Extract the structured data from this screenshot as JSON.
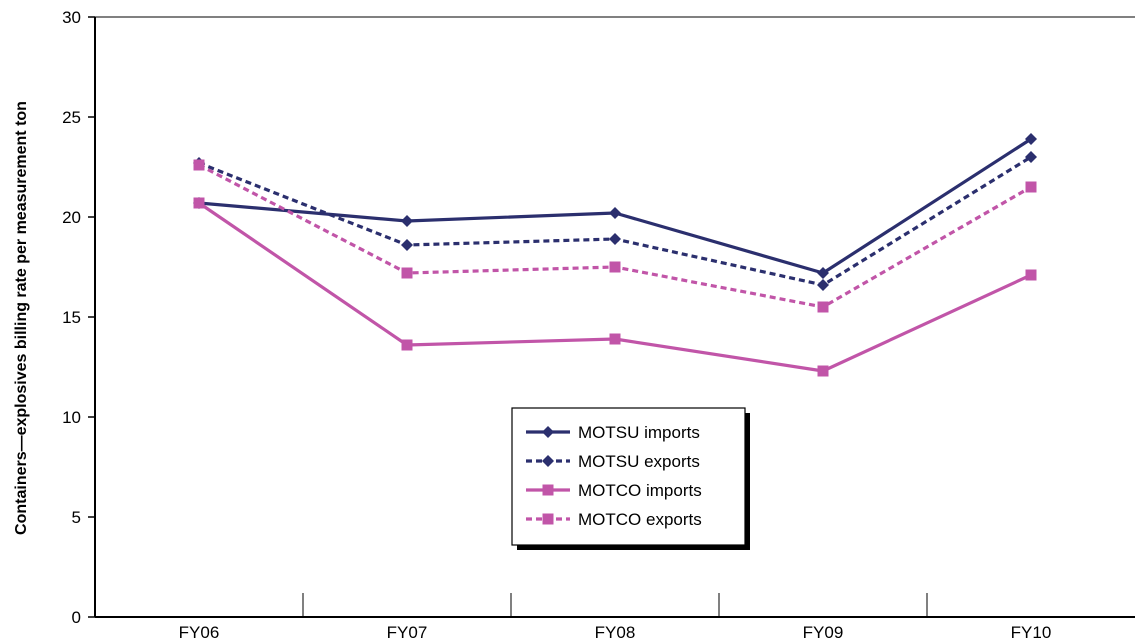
{
  "chart_data": {
    "type": "line",
    "categories": [
      "FY06",
      "FY07",
      "FY08",
      "FY09",
      "FY10"
    ],
    "ylabel": "Containers—explosives billing rate per measurement ton",
    "ylim": [
      0,
      30
    ],
    "yticks": [
      "0",
      "5",
      "10",
      "15",
      "20",
      "25",
      "30"
    ],
    "grid": false,
    "legend_position": "center",
    "series": [
      {
        "name": "MOTSU imports",
        "color": "#2b2f6e",
        "dash": "solid",
        "marker": "diamond",
        "values": [
          20.7,
          19.8,
          20.2,
          17.2,
          23.9
        ]
      },
      {
        "name": "MOTSU exports",
        "color": "#2b2f6e",
        "dash": "dashed",
        "marker": "diamond",
        "values": [
          22.7,
          18.6,
          18.9,
          16.6,
          23.0
        ]
      },
      {
        "name": "MOTCO imports",
        "color": "#c155a8",
        "dash": "solid",
        "marker": "square",
        "values": [
          20.7,
          13.6,
          13.9,
          12.3,
          17.1
        ]
      },
      {
        "name": "MOTCO exports",
        "color": "#c155a8",
        "dash": "dashed",
        "marker": "square",
        "values": [
          22.6,
          17.2,
          17.5,
          15.5,
          21.5
        ]
      }
    ]
  }
}
